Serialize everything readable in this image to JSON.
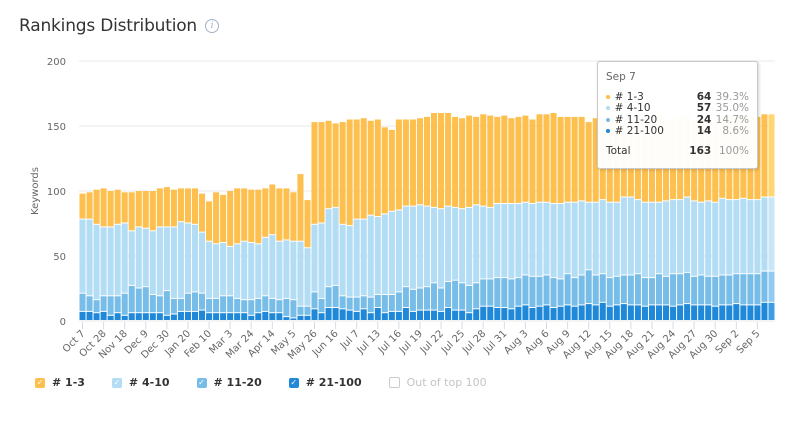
{
  "header": {
    "title": "Rankings Distribution",
    "info_icon": "info-icon"
  },
  "colors": {
    "top3": "#fdbf4d",
    "top10": "#b3dcf5",
    "top20": "#78bde8",
    "top100": "#1f88d9",
    "top3_hl": "#ffd772",
    "top10_hl": "#c8e6f8",
    "top20_hl": "#92cbef",
    "top100_hl": "#3d9ce5"
  },
  "legend": [
    {
      "label": "# 1-3",
      "checked": true,
      "color": "#fdbf4d"
    },
    {
      "label": "# 4-10",
      "checked": true,
      "color": "#b3dcf5"
    },
    {
      "label": "# 11-20",
      "checked": true,
      "color": "#78bde8"
    },
    {
      "label": "# 21-100",
      "checked": true,
      "color": "#1f88d9"
    },
    {
      "label": "Out of top 100",
      "checked": false,
      "color": "#cccccc"
    }
  ],
  "tooltip": {
    "date": "Sep 7",
    "rows": [
      {
        "name": "# 1-3",
        "value": "64",
        "pct": "39.3%",
        "color": "#fdbf4d"
      },
      {
        "name": "# 4-10",
        "value": "57",
        "pct": "35.0%",
        "color": "#b3dcf5"
      },
      {
        "name": "# 11-20",
        "value": "24",
        "pct": "14.7%",
        "color": "#78bde8"
      },
      {
        "name": "# 21-100",
        "value": "14",
        "pct": "8.6%",
        "color": "#1f88d9"
      }
    ],
    "total_label": "Total",
    "total_value": "163",
    "total_pct": "100%"
  },
  "chart_data": {
    "type": "bar",
    "stacked": true,
    "title": "Rankings Distribution",
    "xlabel": "",
    "ylabel": "Keywords",
    "ylim": [
      0,
      200
    ],
    "yticks": [
      0,
      50,
      100,
      150,
      200
    ],
    "grid": true,
    "legend_position": "bottom-left",
    "tick_labels": [
      "Oct 7",
      "Oct 28",
      "Nov 18",
      "Dec 9",
      "Dec 30",
      "Jan 20",
      "Feb 10",
      "Mar 3",
      "Mar 24",
      "Apr 14",
      "May 5",
      "May 26",
      "Jun 16",
      "Jul 7",
      "Jul 13",
      "Jul 16",
      "Jul 19",
      "Jul 22",
      "Jul 25",
      "Jul 28",
      "Jul 31",
      "Aug 3",
      "Aug 6",
      "Aug 9",
      "Aug 12",
      "Aug 15",
      "Aug 18",
      "Aug 21",
      "Aug 24",
      "Aug 27",
      "Aug 30",
      "Sep 2",
      "Sep 5"
    ],
    "tick_every": 3,
    "highlighted_index": 98,
    "series": [
      {
        "name": "# 21-100",
        "values": [
          7,
          7,
          6,
          7,
          4,
          6,
          4,
          6,
          6,
          6,
          6,
          6,
          4,
          5,
          7,
          7,
          7,
          8,
          6,
          6,
          6,
          6,
          6,
          6,
          4,
          6,
          7,
          6,
          6,
          3,
          2,
          4,
          4,
          9,
          6,
          10,
          10,
          9,
          8,
          7,
          9,
          6,
          10,
          6,
          7,
          7,
          10,
          7,
          8,
          8,
          8,
          7,
          10,
          8,
          8,
          6,
          9,
          11,
          11,
          10,
          10,
          9,
          11,
          12,
          10,
          11,
          12,
          10,
          11,
          12,
          11,
          12,
          13,
          12,
          14,
          11,
          12,
          13,
          12,
          12,
          11,
          12,
          12,
          12,
          11,
          12,
          13,
          12,
          12,
          12,
          11,
          12,
          12,
          13,
          12,
          12,
          12,
          14,
          14
        ]
      },
      {
        "name": "# 11-20",
        "values": [
          14,
          12,
          10,
          12,
          15,
          13,
          17,
          21,
          19,
          20,
          14,
          13,
          19,
          12,
          10,
          14,
          15,
          13,
          11,
          11,
          13,
          13,
          11,
          10,
          12,
          11,
          12,
          11,
          10,
          14,
          14,
          7,
          7,
          13,
          11,
          16,
          17,
          10,
          10,
          11,
          10,
          12,
          10,
          14,
          13,
          15,
          16,
          17,
          17,
          18,
          21,
          18,
          20,
          23,
          21,
          21,
          20,
          21,
          21,
          23,
          23,
          23,
          22,
          23,
          24,
          23,
          23,
          23,
          21,
          24,
          22,
          23,
          26,
          23,
          22,
          22,
          22,
          22,
          23,
          24,
          22,
          21,
          24,
          22,
          25,
          24,
          24,
          22,
          23,
          22,
          23,
          23,
          23,
          23,
          24,
          24,
          24,
          24,
          24
        ]
      },
      {
        "name": "# 4-10",
        "values": [
          57,
          59,
          58,
          53,
          53,
          55,
          54,
          42,
          47,
          45,
          49,
          53,
          49,
          55,
          59,
          54,
          52,
          47,
          44,
          42,
          41,
          38,
          42,
          45,
          44,
          42,
          45,
          49,
          45,
          45,
          45,
          50,
          45,
          52,
          58,
          60,
          60,
          55,
          55,
          60,
          59,
          63,
          60,
          62,
          64,
          63,
          62,
          64,
          64,
          62,
          58,
          61,
          58,
          56,
          57,
          60,
          60,
          56,
          55,
          57,
          57,
          58,
          57,
          56,
          56,
          57,
          56,
          57,
          58,
          55,
          58,
          57,
          52,
          56,
          57,
          58,
          57,
          60,
          60,
          57,
          58,
          58,
          55,
          58,
          57,
          57,
          58,
          58,
          56,
          58,
          57,
          59,
          58,
          57,
          58,
          57,
          57,
          57,
          57
        ]
      },
      {
        "name": "# 1-3",
        "values": [
          20,
          21,
          27,
          30,
          28,
          27,
          24,
          30,
          28,
          29,
          31,
          30,
          31,
          29,
          26,
          27,
          28,
          30,
          31,
          40,
          37,
          43,
          43,
          41,
          41,
          42,
          38,
          39,
          41,
          40,
          38,
          52,
          37,
          79,
          78,
          68,
          65,
          79,
          82,
          77,
          78,
          73,
          75,
          67,
          63,
          70,
          67,
          67,
          67,
          69,
          73,
          74,
          72,
          70,
          70,
          71,
          68,
          71,
          71,
          67,
          68,
          66,
          67,
          67,
          65,
          68,
          68,
          70,
          67,
          66,
          66,
          65,
          62,
          65,
          64,
          64,
          65,
          62,
          60,
          64,
          65,
          64,
          68,
          63,
          63,
          64,
          63,
          63,
          66,
          62,
          65,
          64,
          64,
          65,
          64,
          64,
          64,
          64,
          64
        ]
      }
    ]
  }
}
